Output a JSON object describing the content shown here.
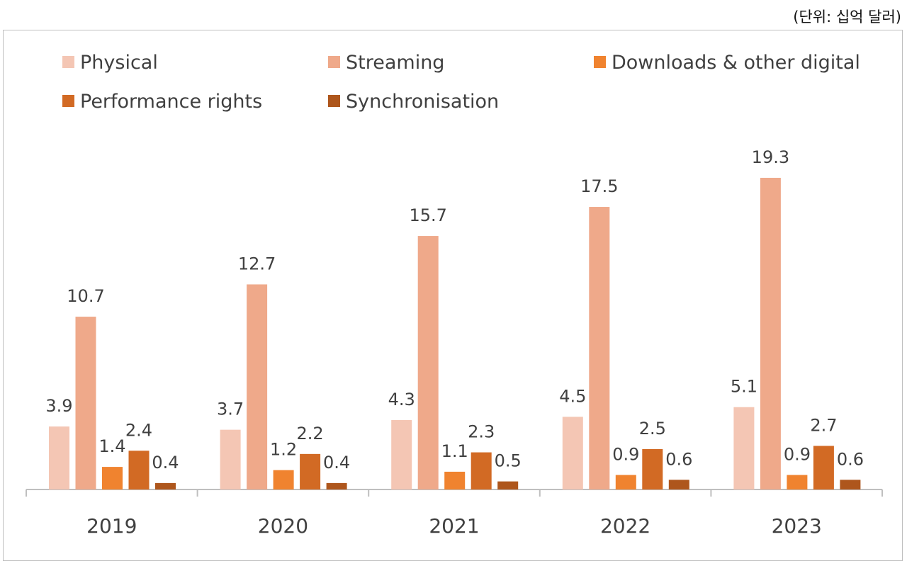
{
  "unit_label": "(단위: 십억 달러)",
  "chart_data": {
    "type": "bar",
    "categories": [
      "2019",
      "2020",
      "2021",
      "2022",
      "2023"
    ],
    "series": [
      {
        "name": "Physical",
        "color": "#f4c6b4",
        "values": [
          3.9,
          3.7,
          4.3,
          4.5,
          5.1
        ]
      },
      {
        "name": "Streaming",
        "color": "#efa98a",
        "values": [
          10.7,
          12.7,
          15.7,
          17.5,
          19.3
        ]
      },
      {
        "name": "Downloads & other digital",
        "color": "#f0832f",
        "values": [
          1.4,
          1.2,
          1.1,
          0.9,
          0.9
        ]
      },
      {
        "name": "Performance rights",
        "color": "#d26a24",
        "values": [
          2.4,
          2.2,
          2.3,
          2.5,
          2.7
        ]
      },
      {
        "name": "Synchronisation",
        "color": "#ae561c",
        "values": [
          0.4,
          0.4,
          0.5,
          0.6,
          0.6
        ]
      }
    ],
    "data_labels": [
      [
        "3.9",
        "10.7",
        "1.4",
        "2.4",
        "0.4"
      ],
      [
        "3.7",
        "12.7",
        "1.2",
        "2.2",
        "0.4"
      ],
      [
        "4.3",
        "15.7",
        "1.1",
        "2.3",
        "0.5"
      ],
      [
        "4.5",
        "17.5",
        "0.9",
        "2.5",
        "0.6"
      ],
      [
        "5.1",
        "19.3",
        "0.9",
        "2.7",
        "0.6"
      ]
    ],
    "ylim": [
      0,
      20
    ],
    "legend_position": "top",
    "title": "",
    "xlabel": "",
    "ylabel": ""
  }
}
